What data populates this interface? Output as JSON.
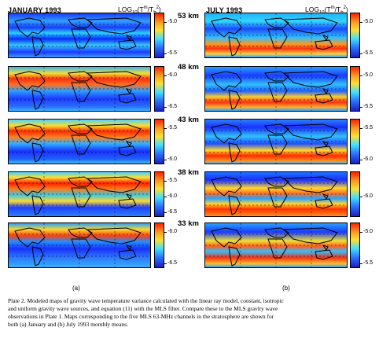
{
  "header": {
    "left_title": "JANUARY 1993",
    "right_title": "JULY 1993",
    "log_label": "LOG",
    "log_sub": "10",
    "log_expr_a": "(T",
    "log_sup_a": "m",
    "log_mid": "/T",
    "log_sub_b": "b",
    "log_sup_b": "2",
    "log_close": ")"
  },
  "altitudes": [
    "53 km",
    "48 km",
    "43 km",
    "38 km",
    "33 km"
  ],
  "left_colorbars": [
    [
      "-5.0",
      "-5.5"
    ],
    [
      "-6.0",
      "-6.5"
    ],
    [
      "-5.5",
      "-6.0"
    ],
    [
      "-5.5",
      "-6.0",
      "-6.5"
    ],
    [
      "-6.0",
      "-6.5"
    ]
  ],
  "right_colorbars": [
    [
      "-5.0",
      "-5.5"
    ],
    [
      "-5.0",
      "-5.5"
    ],
    [
      "-5.5",
      "-6.0"
    ],
    [
      "-6.0"
    ],
    [
      "-5.0",
      "-5.5"
    ]
  ],
  "panel_labels": {
    "left": "(a)",
    "right": "(b)"
  },
  "caption": [
    "Plate 2.  Modeled maps of gravity wave temperature variance calculated with the linear ray model, constant, isotropic",
    "and uniform gravity wave sources, and equation (11) with the MLS filter.  Compare these to the MLS gravity wave",
    "observations in Plate 1.  Maps corresponding to the five MLS 63-MHz channels in the stratosphere are shown for",
    "both (a) January and (b) July 1993 monthly means."
  ]
}
